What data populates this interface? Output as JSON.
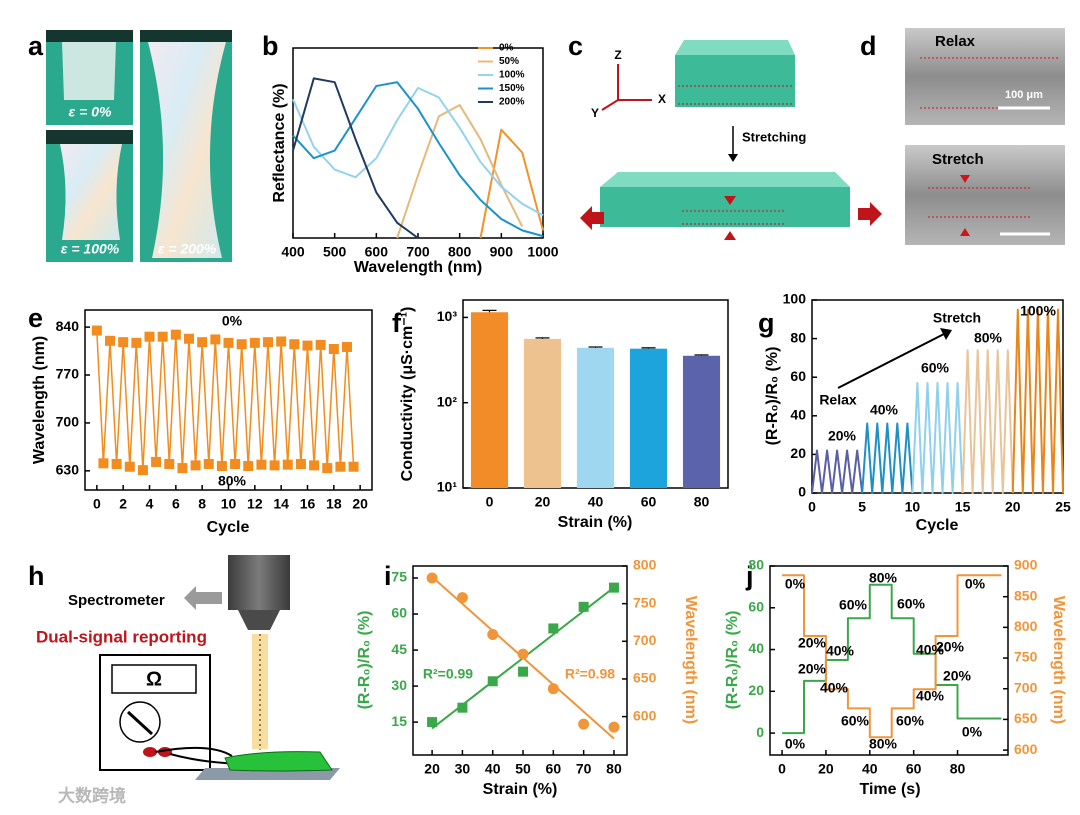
{
  "panels": {
    "letters": [
      "a",
      "b",
      "c",
      "d",
      "e",
      "f",
      "g",
      "h",
      "i",
      "j"
    ],
    "photos": [
      "ε = 0%",
      "ε = 100%",
      "ε = 200%"
    ],
    "schematic": {
      "axes": [
        "Z",
        "X",
        "Y"
      ],
      "step": "Stretching"
    },
    "sem": {
      "top": "Relax",
      "scale": "100 μm",
      "bottom": "Stretch"
    },
    "setup": {
      "detector": "Spectrometer",
      "title": "Dual-signal reporting",
      "meter": "Ω"
    },
    "watermark": "大数跨境"
  },
  "chart_data": [
    {
      "type": "line",
      "xlabel": "Wavelength (nm)",
      "ylabel": "Reflectance (%)",
      "x": [
        400,
        450,
        500,
        550,
        600,
        650,
        700,
        750,
        800,
        850,
        900,
        950,
        1000
      ],
      "xlim": [
        400,
        1000
      ],
      "ylim": [
        0,
        100
      ],
      "xticks": [
        400,
        500,
        600,
        700,
        800,
        900,
        1000
      ],
      "legend": "upper right",
      "series": [
        {
          "name": "0%",
          "color": "#f0922e",
          "values": [
            null,
            null,
            null,
            null,
            null,
            null,
            null,
            null,
            null,
            0,
            57,
            45,
            4
          ]
        },
        {
          "name": "50%",
          "color": "#e8b87a",
          "values": [
            null,
            null,
            null,
            null,
            null,
            0,
            33,
            64,
            70,
            52,
            28,
            6,
            null
          ]
        },
        {
          "name": "100%",
          "color": "#93d3ee",
          "values": [
            73,
            48,
            36,
            32,
            42,
            62,
            79,
            74,
            58,
            40,
            27,
            18,
            12
          ]
        },
        {
          "name": "150%",
          "color": "#1a93cc",
          "values": [
            54,
            42,
            46,
            63,
            80,
            82,
            68,
            50,
            33,
            20,
            10,
            4,
            1
          ]
        },
        {
          "name": "200%",
          "color": "#1f3a5f",
          "values": [
            46,
            84,
            82,
            52,
            24,
            8,
            0,
            null,
            null,
            null,
            null,
            null,
            null
          ]
        }
      ]
    },
    {
      "type": "line",
      "markers": "square",
      "color": "#f28c1e",
      "xlabel": "Cycle",
      "ylabel": "Wavelength (nm)",
      "xlim": [
        -0.9,
        20.9
      ],
      "ylim": [
        602,
        865
      ],
      "xticks": [
        0,
        2,
        4,
        6,
        8,
        10,
        12,
        14,
        16,
        18,
        20
      ],
      "yticks": [
        630,
        700,
        770,
        840
      ],
      "x": [
        0,
        0.5,
        1,
        1.5,
        2,
        2.5,
        3,
        3.5,
        4,
        4.5,
        5,
        5.5,
        6,
        6.5,
        7,
        7.5,
        8,
        8.5,
        9,
        9.5,
        10,
        10.5,
        11,
        11.5,
        12,
        12.5,
        13,
        13.5,
        14,
        14.5,
        15,
        15.5,
        16,
        16.5,
        17,
        17.5,
        18,
        18.5,
        19,
        19.5
      ],
      "values": [
        835,
        641,
        820,
        640,
        818,
        636,
        817,
        631,
        826,
        643,
        826,
        640,
        829,
        634,
        823,
        638,
        818,
        640,
        822,
        637,
        817,
        640,
        815,
        637,
        817,
        639,
        818,
        638,
        819,
        639,
        815,
        640,
        813,
        638,
        814,
        634,
        808,
        636,
        811,
        636
      ],
      "annotations": [
        "0%",
        "80%"
      ]
    },
    {
      "type": "bar",
      "log_scale": true,
      "xlabel": "Strain (%)",
      "ylabel": "Conductivity (μS·cm⁻¹)",
      "categories": [
        "0",
        "20",
        "40",
        "60",
        "80"
      ],
      "values": [
        1150,
        560,
        440,
        430,
        355
      ],
      "errors": [
        60,
        15,
        10,
        10,
        8
      ],
      "colors": [
        "#f28c28",
        "#eec28e",
        "#9fd6f0",
        "#1ea4dc",
        "#5b63ab"
      ],
      "ylim": [
        10,
        1600
      ],
      "yticks": [
        {
          "value": 10,
          "label": "10¹"
        },
        {
          "value": 100,
          "label": "10²"
        },
        {
          "value": 1000,
          "label": "10³"
        }
      ]
    },
    {
      "type": "line",
      "xlabel": "Cycle",
      "ylabel": "(R-R₀)/R₀ (%)",
      "xlim": [
        0,
        25
      ],
      "ylim": [
        0,
        100
      ],
      "xticks": [
        0,
        5,
        10,
        15,
        20,
        25
      ],
      "yticks": [
        0,
        20,
        40,
        60,
        80,
        100
      ],
      "series": [
        {
          "name": "20%",
          "color": "#5b5ea6",
          "x": [
            0,
            0.5,
            1,
            1.5,
            2,
            2.5,
            3,
            3.5,
            4,
            4.5,
            5
          ],
          "values": [
            0,
            22,
            0,
            22,
            0,
            22,
            0,
            22,
            0,
            22,
            0
          ]
        },
        {
          "name": "40%",
          "color": "#1e90c8",
          "x": [
            5,
            5.5,
            6,
            6.5,
            7,
            7.5,
            8,
            8.5,
            9,
            9.5,
            10
          ],
          "values": [
            0,
            36,
            0,
            36,
            0,
            36,
            0,
            36,
            0,
            36,
            0
          ]
        },
        {
          "name": "60%",
          "color": "#8fd0ec",
          "x": [
            10,
            10.5,
            11,
            11.5,
            12,
            12.5,
            13,
            13.5,
            14,
            14.5,
            15
          ],
          "values": [
            0,
            57,
            0,
            57,
            0,
            57,
            0,
            57,
            0,
            57,
            0
          ]
        },
        {
          "name": "80%",
          "color": "#e8c49a",
          "x": [
            15,
            15.5,
            16,
            16.5,
            17,
            17.5,
            18,
            18.5,
            19,
            19.5,
            20
          ],
          "values": [
            0,
            74,
            0,
            74,
            0,
            74,
            0,
            74,
            0,
            74,
            0
          ]
        },
        {
          "name": "100%",
          "color": "#e8861e",
          "x": [
            20,
            20.5,
            21,
            21.5,
            22,
            22.5,
            23,
            23.5,
            24,
            24.5,
            25
          ],
          "values": [
            0,
            95,
            0,
            95,
            0,
            95,
            0,
            95,
            0,
            95,
            0
          ]
        }
      ],
      "annotations": [
        "Relax",
        "Stretch"
      ]
    },
    {
      "type": "scatter",
      "fit": "linear",
      "xlabel": "Strain (%)",
      "ylabel": "(R-R₀)/R₀ (%)",
      "y2label": "Wavelength (nm)",
      "x": [
        20,
        30,
        40,
        50,
        60,
        70,
        80
      ],
      "xlim": [
        13.7,
        84.3
      ],
      "ylim": [
        1.3,
        80
      ],
      "y2lim": [
        549,
        800
      ],
      "xticks": [
        20,
        30,
        40,
        50,
        60,
        70,
        80
      ],
      "yticks": [
        15,
        30,
        45,
        60,
        75
      ],
      "y2ticks": [
        600,
        650,
        700,
        750,
        800
      ],
      "series": [
        {
          "color": "#3aa84a",
          "marker": "square",
          "values": [
            15,
            21,
            32,
            36,
            54,
            63,
            71
          ]
        },
        {
          "color": "#f0953a",
          "marker": "circle",
          "axis": "y2",
          "values": [
            784,
            758,
            709,
            683,
            637,
            590,
            586
          ]
        }
      ],
      "annotations": [
        "R²=0.99",
        "R²=0.98"
      ]
    },
    {
      "type": "line",
      "xlabel": "Time (s)",
      "ylabel": "(R-R₀)/R₀ (%)",
      "y2label": "Wavelength (nm)",
      "x": [
        0,
        10,
        10,
        20,
        20,
        30,
        30,
        40,
        40,
        50,
        50,
        60,
        60,
        70,
        70,
        80,
        80,
        100
      ],
      "xlim": [
        -5.5,
        103
      ],
      "ylim": [
        -10.5,
        80
      ],
      "y2lim": [
        592,
        900
      ],
      "xticks": [
        0,
        20,
        40,
        60,
        80
      ],
      "yticks": [
        0,
        20,
        40,
        60,
        80
      ],
      "y2ticks": [
        600,
        650,
        700,
        750,
        800,
        850,
        900
      ],
      "series": [
        {
          "color": "#3aa84a",
          "values": [
            0,
            0,
            25,
            25,
            35,
            35,
            55,
            55,
            71,
            71,
            55,
            55,
            38,
            38,
            23,
            23,
            7,
            7
          ]
        },
        {
          "color": "#f0953a",
          "axis": "y2",
          "values": [
            885,
            885,
            786,
            786,
            699,
            699,
            668,
            668,
            621,
            621,
            668,
            668,
            699,
            699,
            786,
            786,
            885,
            885
          ]
        }
      ],
      "annotations": [
        "0%",
        "20%",
        "40%",
        "60%",
        "80%",
        "60%",
        "40%",
        "20%",
        "0%",
        "0%",
        "20%",
        "40%",
        "60%",
        "80%",
        "60%",
        "40%",
        "20%",
        "0%"
      ]
    }
  ]
}
